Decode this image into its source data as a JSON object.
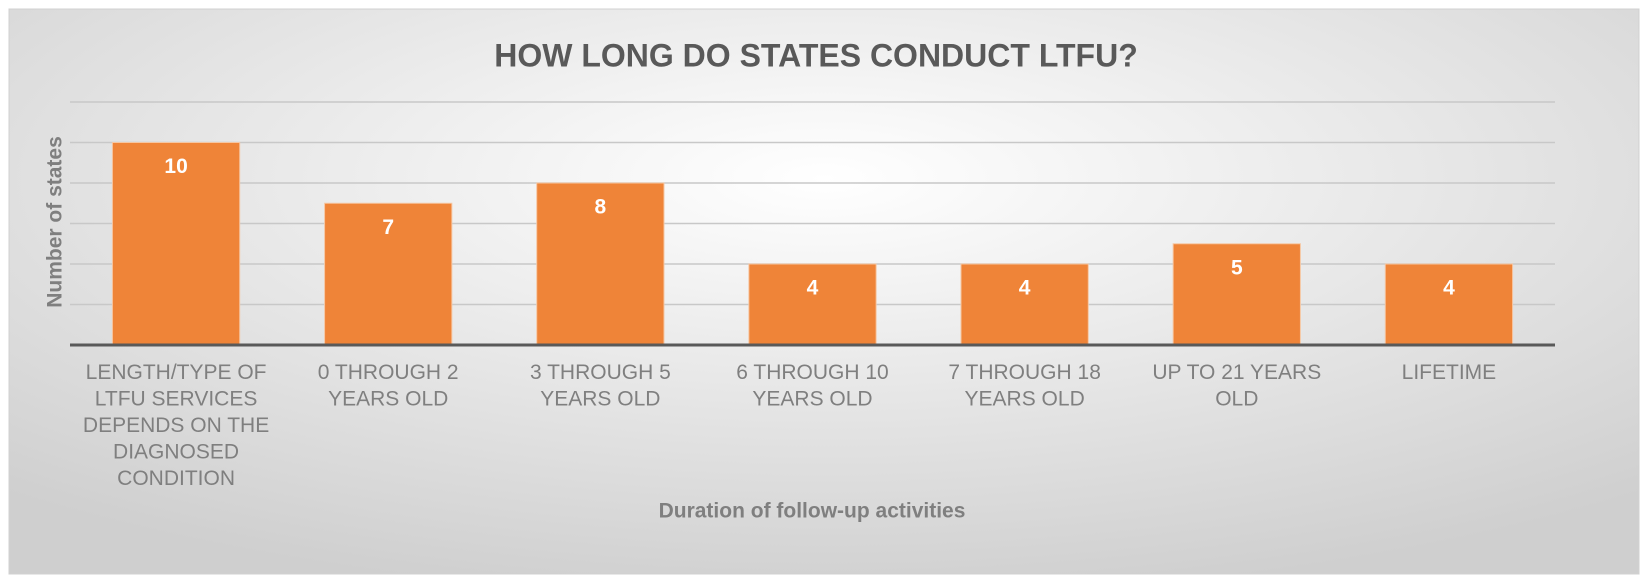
{
  "chart_data": {
    "type": "bar",
    "title": "HOW LONG DO STATES CONDUCT LTFU?",
    "x_label": "Duration of follow-up activities",
    "y_label": "Number of states",
    "categories": [
      "LENGTH/TYPE OF LTFU SERVICES DEPENDS ON THE DIAGNOSED CONDITION",
      "0 THROUGH 2 YEARS OLD",
      "3 THROUGH 5 YEARS OLD",
      "6 THROUGH 10 YEARS OLD",
      "7 THROUGH 18 YEARS OLD",
      "UP TO 21 YEARS OLD",
      "LIFETIME"
    ],
    "values": [
      10,
      7,
      8,
      4,
      4,
      5,
      4
    ],
    "color": "#ef8438",
    "ylim": [
      0,
      12
    ],
    "yticks": [
      0,
      2,
      4,
      6,
      8,
      10,
      12
    ],
    "grid": true
  }
}
